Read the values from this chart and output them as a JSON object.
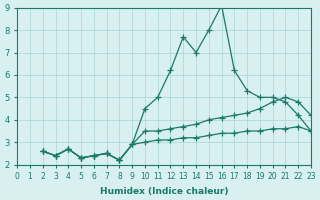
{
  "xlabel": "Humidex (Indice chaleur)",
  "xlim": [
    0,
    23
  ],
  "ylim": [
    2,
    9
  ],
  "xticks": [
    0,
    1,
    2,
    3,
    4,
    5,
    6,
    7,
    8,
    9,
    10,
    11,
    12,
    13,
    14,
    15,
    16,
    17,
    18,
    19,
    20,
    21,
    22,
    23
  ],
  "yticks": [
    2,
    3,
    4,
    5,
    6,
    7,
    8,
    9
  ],
  "bg_color": "#d8f0f0",
  "grid_color": "#aad4d4",
  "line_color": "#1a7a6a",
  "series": [
    [
      2.6,
      2.4,
      2.7,
      2.3,
      2.4,
      2.5,
      2.2,
      2.9,
      4.5,
      5.0,
      6.2,
      7.7,
      7.0,
      8.0,
      9.1,
      6.2,
      5.3,
      5.0,
      5.0,
      4.8,
      4.2,
      3.5
    ],
    [
      2.6,
      2.4,
      2.7,
      2.3,
      2.4,
      2.5,
      2.2,
      2.9,
      3.5,
      3.5,
      3.6,
      3.7,
      3.8,
      4.0,
      4.1,
      4.2,
      4.3,
      4.5,
      4.8,
      5.0,
      4.8,
      4.2
    ],
    [
      2.6,
      2.4,
      2.7,
      2.3,
      2.4,
      2.5,
      2.2,
      2.9,
      3.0,
      3.1,
      3.1,
      3.2,
      3.2,
      3.3,
      3.4,
      3.4,
      3.5,
      3.5,
      3.6,
      3.6,
      3.7,
      3.5
    ]
  ],
  "x_start": 2
}
